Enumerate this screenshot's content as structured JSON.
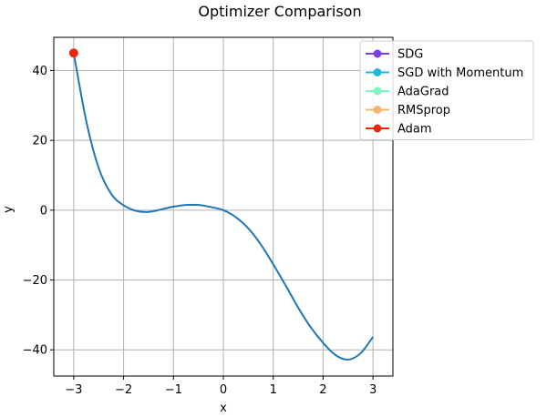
{
  "chart_data": {
    "type": "line",
    "title": "Optimizer Comparison",
    "xlabel": "x",
    "ylabel": "y",
    "xlim": [
      -3.4,
      3.4
    ],
    "ylim": [
      -47.5,
      49.5
    ],
    "xticks": [
      -3,
      -2,
      -1,
      0,
      1,
      2,
      3
    ],
    "xtick_labels": [
      "−3",
      "−2",
      "−1",
      "0",
      "1",
      "2",
      "3"
    ],
    "yticks": [
      -40,
      -20,
      0,
      20,
      40
    ],
    "ytick_labels": [
      "−40",
      "−20",
      "0",
      "20",
      "40"
    ],
    "grid": true,
    "legend_position": "top-right",
    "curve": {
      "color": "#1f77b4",
      "x": [
        -3.0,
        -2.75,
        -2.5,
        -2.25,
        -2.0,
        -1.75,
        -1.5,
        -1.25,
        -1.0,
        -0.75,
        -0.5,
        -0.25,
        0.0,
        0.25,
        0.5,
        0.75,
        1.0,
        1.25,
        1.5,
        1.75,
        2.0,
        2.25,
        2.5,
        2.75,
        3.0
      ],
      "y": [
        45.0,
        25.6,
        12.1,
        4.7,
        1.4,
        -0.2,
        -0.5,
        0.2,
        1.0,
        1.5,
        1.5,
        0.9,
        0.0,
        -2.0,
        -5.2,
        -9.8,
        -15.5,
        -21.6,
        -27.9,
        -33.5,
        -38.0,
        -41.5,
        -42.8,
        -41.0,
        -36.3
      ]
    },
    "series": [
      {
        "name": "SDG",
        "color": "#7b3fe4",
        "points": []
      },
      {
        "name": "SGD with Momentum",
        "color": "#1fb8d9",
        "points": []
      },
      {
        "name": "AdaGrad",
        "color": "#7ff7c0",
        "points": []
      },
      {
        "name": "RMSprop",
        "color": "#f4b66f",
        "points": []
      },
      {
        "name": "Adam",
        "color": "#e8290c",
        "points": [
          {
            "x": -3.0,
            "y": 45.0
          }
        ]
      }
    ]
  }
}
